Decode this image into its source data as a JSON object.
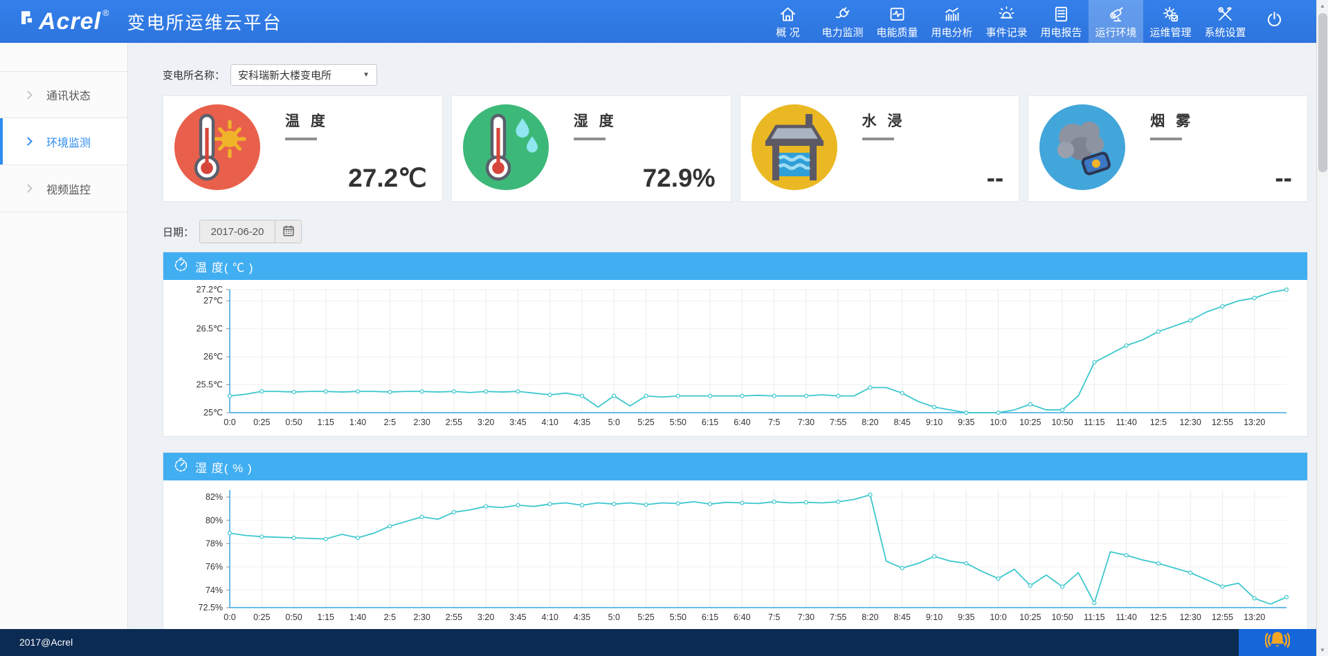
{
  "header": {
    "logo": "Acrel",
    "logo_reg": "®",
    "title": "变电所运维云平台",
    "nav": [
      {
        "label": "概 况",
        "icon": "home-icon",
        "active": false
      },
      {
        "label": "电力监测",
        "icon": "plug-icon",
        "active": false
      },
      {
        "label": "电能质量",
        "icon": "waveform-icon",
        "active": false
      },
      {
        "label": "用电分析",
        "icon": "bar-chart-icon",
        "active": false
      },
      {
        "label": "事件记录",
        "icon": "alarm-icon",
        "active": false
      },
      {
        "label": "用电报告",
        "icon": "report-icon",
        "active": false
      },
      {
        "label": "运行环境",
        "icon": "camera-icon",
        "active": true
      },
      {
        "label": "运维管理",
        "icon": "gear-icon",
        "active": false
      },
      {
        "label": "系统设置",
        "icon": "tools-icon",
        "active": false
      }
    ],
    "power_icon": "power-icon"
  },
  "sidebar": {
    "items": [
      {
        "label": "通讯状态",
        "active": false,
        "icon": "chevron-right-icon"
      },
      {
        "label": "环境监测",
        "active": true,
        "icon": "chevron-right-icon"
      },
      {
        "label": "视频监控",
        "active": false,
        "icon": "chevron-right-icon"
      }
    ]
  },
  "filters": {
    "station_label": "变电所名称：",
    "station_value": "安科瑞新大楼变电所",
    "date_label": "日期：",
    "date_value": "2017-06-20",
    "calendar_icon": "calendar-icon"
  },
  "cards": [
    {
      "title": "温 度",
      "value": "27.2℃",
      "icon": "thermometer-sun-icon",
      "color": "#e8604c"
    },
    {
      "title": "湿 度",
      "value": "72.9%",
      "icon": "thermometer-drops-icon",
      "color": "#3cb878"
    },
    {
      "title": "水 浸",
      "value": "--",
      "icon": "water-tank-icon",
      "color": "#eab822"
    },
    {
      "title": "烟 雾",
      "value": "--",
      "icon": "smoke-icon",
      "color": "#42a6da"
    }
  ],
  "footer": {
    "copyright": "2017@Acrel",
    "alarm_icon": "alarm-bell-icon"
  },
  "colors": {
    "topbar": "#2f7ae2",
    "chart_header": "#41aef2",
    "line": "#3cc7cd",
    "axis": "#3aa6e0",
    "active_blue": "#2d8cf0",
    "footer": "#0b2b52"
  },
  "chart_data": [
    {
      "type": "line",
      "title": "温 度( ℃ )",
      "header_icon": "timer-icon",
      "ylabel": "℃",
      "ylim": [
        25,
        27.2
      ],
      "grid": true,
      "legend": "none",
      "y_ticks": [
        {
          "v": 25,
          "label": "25℃"
        },
        {
          "v": 25.5,
          "label": "25.5℃"
        },
        {
          "v": 26,
          "label": "26℃"
        },
        {
          "v": 26.5,
          "label": "26.5℃"
        },
        {
          "v": 27,
          "label": "27℃"
        },
        {
          "v": 27.2,
          "label": "27.2℃"
        }
      ],
      "categories": [
        "0:0",
        "0:25",
        "0:50",
        "1:15",
        "1:40",
        "2:5",
        "2:30",
        "2:55",
        "3:20",
        "3:45",
        "4:10",
        "4:35",
        "5:0",
        "5:25",
        "5:50",
        "6:15",
        "6:40",
        "7:5",
        "7:30",
        "7:55",
        "8:20",
        "8:45",
        "9:10",
        "9:35",
        "10:0",
        "10:25",
        "10:50",
        "11:15",
        "11:40",
        "12:5",
        "12:30",
        "12:55",
        "13:20"
      ],
      "values": [
        25.3,
        25.33,
        25.38,
        25.38,
        25.37,
        25.38,
        25.38,
        25.37,
        25.38,
        25.38,
        25.37,
        25.38,
        25.38,
        25.37,
        25.38,
        25.36,
        25.38,
        25.37,
        25.38,
        25.35,
        25.32,
        25.35,
        25.3,
        25.1,
        25.3,
        25.12,
        25.3,
        25.28,
        25.3,
        25.3,
        25.3,
        25.3,
        25.3,
        25.31,
        25.3,
        25.3,
        25.3,
        25.32,
        25.3,
        25.3,
        25.45,
        25.45,
        25.35,
        25.2,
        25.1,
        25.05,
        25.0,
        25.0,
        25.0,
        25.05,
        25.15,
        25.05,
        25.05,
        25.3,
        25.9,
        26.05,
        26.2,
        26.3,
        26.45,
        26.55,
        26.65,
        26.8,
        26.9,
        27.0,
        27.05,
        27.15,
        27.2
      ],
      "line_color": "#3cc7cd",
      "axis_color": "#3aa6e0"
    },
    {
      "type": "line",
      "title": "湿 度( % )",
      "header_icon": "timer-icon",
      "ylabel": "%",
      "ylim": [
        72.5,
        82.6
      ],
      "grid": true,
      "legend": "none",
      "y_ticks": [
        {
          "v": 72.5,
          "label": "72.5%"
        },
        {
          "v": 74,
          "label": "74%"
        },
        {
          "v": 76,
          "label": "76%"
        },
        {
          "v": 78,
          "label": "78%"
        },
        {
          "v": 80,
          "label": "80%"
        },
        {
          "v": 82,
          "label": "82%"
        }
      ],
      "categories": [
        "0:0",
        "0:25",
        "0:50",
        "1:15",
        "1:40",
        "2:5",
        "2:30",
        "2:55",
        "3:20",
        "3:45",
        "4:10",
        "4:35",
        "5:0",
        "5:25",
        "5:50",
        "6:15",
        "6:40",
        "7:5",
        "7:30",
        "7:55",
        "8:20",
        "8:45",
        "9:10",
        "9:35",
        "10:0",
        "10:25",
        "10:50",
        "11:15",
        "11:40",
        "12:5",
        "12:30",
        "12:55",
        "13:20"
      ],
      "values": [
        78.9,
        78.7,
        78.6,
        78.55,
        78.5,
        78.45,
        78.4,
        78.8,
        78.5,
        78.9,
        79.5,
        79.9,
        80.3,
        80.1,
        80.7,
        80.9,
        81.2,
        81.1,
        81.3,
        81.2,
        81.4,
        81.5,
        81.3,
        81.5,
        81.4,
        81.5,
        81.35,
        81.5,
        81.45,
        81.6,
        81.4,
        81.55,
        81.5,
        81.45,
        81.6,
        81.5,
        81.55,
        81.5,
        81.6,
        81.8,
        82.2,
        76.5,
        75.9,
        76.3,
        76.9,
        76.5,
        76.3,
        75.6,
        75.0,
        75.8,
        74.4,
        75.3,
        74.3,
        75.5,
        72.9,
        77.3,
        77.0,
        76.6,
        76.3,
        75.9,
        75.5,
        74.9,
        74.3,
        74.6,
        73.3,
        72.8,
        73.4
      ],
      "line_color": "#3cc7cd",
      "axis_color": "#3aa6e0"
    }
  ]
}
